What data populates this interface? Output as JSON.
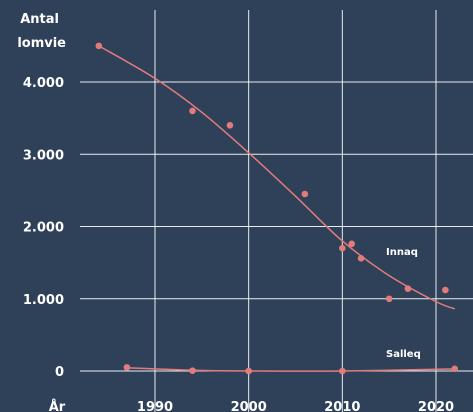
{
  "chart_data": {
    "type": "scatter",
    "y_axis_title_lines": [
      "Antal",
      "lomvie"
    ],
    "x_axis_title": "År",
    "xlim": [
      1982,
      2023
    ],
    "ylim": [
      0,
      4800
    ],
    "x_ticks": [
      1990,
      2000,
      2010,
      2020
    ],
    "x_tick_labels": [
      "1990",
      "2000",
      "2010",
      "2020"
    ],
    "y_ticks": [
      0,
      1000,
      2000,
      3000,
      4000
    ],
    "y_tick_labels": [
      "0",
      "1.000",
      "2.000",
      "3.000",
      "4.000"
    ],
    "grid": true,
    "marker_color": "#e27c7c",
    "series": [
      {
        "name": "Innaq",
        "points": [
          {
            "x": 1984,
            "y": 4500
          },
          {
            "x": 1994,
            "y": 3600
          },
          {
            "x": 1998,
            "y": 3400
          },
          {
            "x": 2006,
            "y": 2450
          },
          {
            "x": 2010,
            "y": 1700
          },
          {
            "x": 2011,
            "y": 1760
          },
          {
            "x": 2012,
            "y": 1560
          },
          {
            "x": 2015,
            "y": 1000
          },
          {
            "x": 2017,
            "y": 1140
          },
          {
            "x": 2021,
            "y": 1120
          }
        ],
        "trend": [
          {
            "x": 1984,
            "y": 4500
          },
          {
            "x": 1990,
            "y": 4050
          },
          {
            "x": 1995,
            "y": 3580
          },
          {
            "x": 2000,
            "y": 3020
          },
          {
            "x": 2005,
            "y": 2420
          },
          {
            "x": 2010,
            "y": 1800
          },
          {
            "x": 2015,
            "y": 1320
          },
          {
            "x": 2020,
            "y": 960
          },
          {
            "x": 2022,
            "y": 860
          }
        ]
      },
      {
        "name": "Salleq",
        "points": [
          {
            "x": 1987,
            "y": 50
          },
          {
            "x": 1994,
            "y": 5
          },
          {
            "x": 2000,
            "y": 0
          },
          {
            "x": 2010,
            "y": 0
          },
          {
            "x": 2022,
            "y": 30
          }
        ],
        "trend": [
          {
            "x": 1987,
            "y": 45
          },
          {
            "x": 1994,
            "y": 10
          },
          {
            "x": 2000,
            "y": 0
          },
          {
            "x": 2010,
            "y": 0
          },
          {
            "x": 2022,
            "y": 30
          }
        ]
      }
    ]
  }
}
